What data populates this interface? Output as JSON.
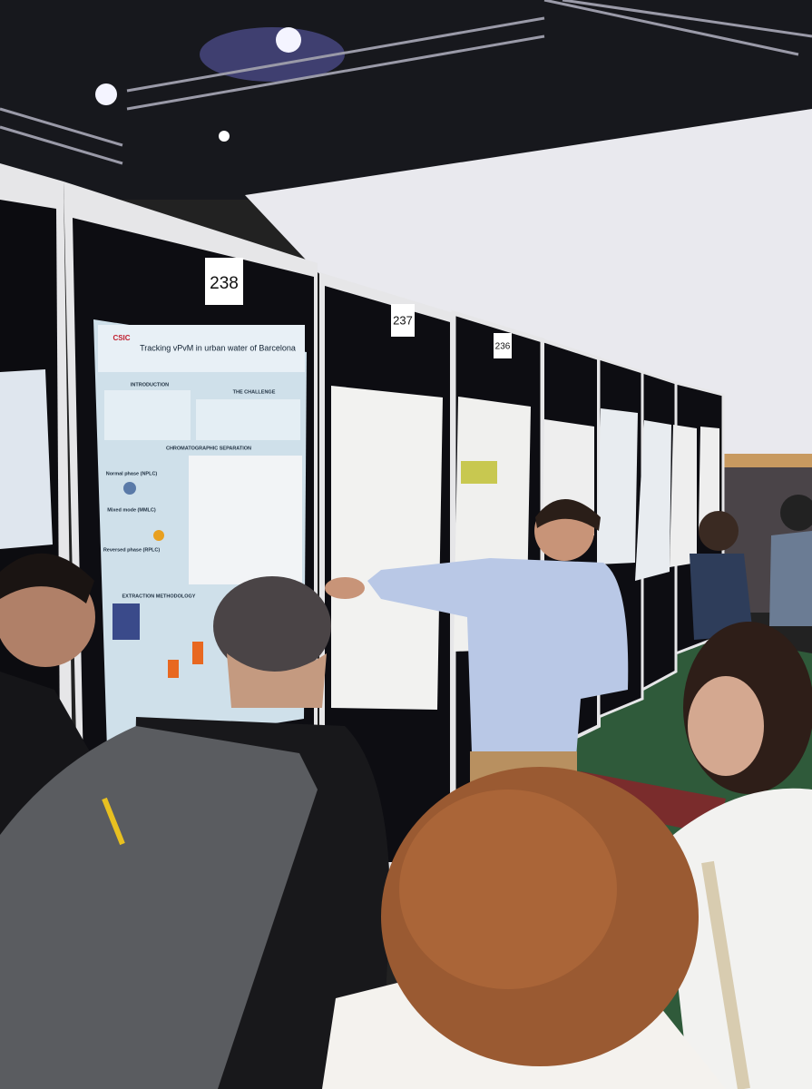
{
  "booths": [
    {
      "number": "238"
    },
    {
      "number": "237"
    },
    {
      "number": "236"
    }
  ],
  "poster": {
    "logo": "CSIC",
    "title": "Tracking vPvM in urban water of Barcelona",
    "sections": [
      "INTRODUCTION",
      "THE CHALLENGE",
      "CHROMATOGRAPHIC SEPARATION",
      "Normal phase (NPLC)",
      "Mixed mode (MMLC)",
      "Reversed phase (RPLC)",
      "EXTRACTION METHODOLOGY"
    ]
  }
}
